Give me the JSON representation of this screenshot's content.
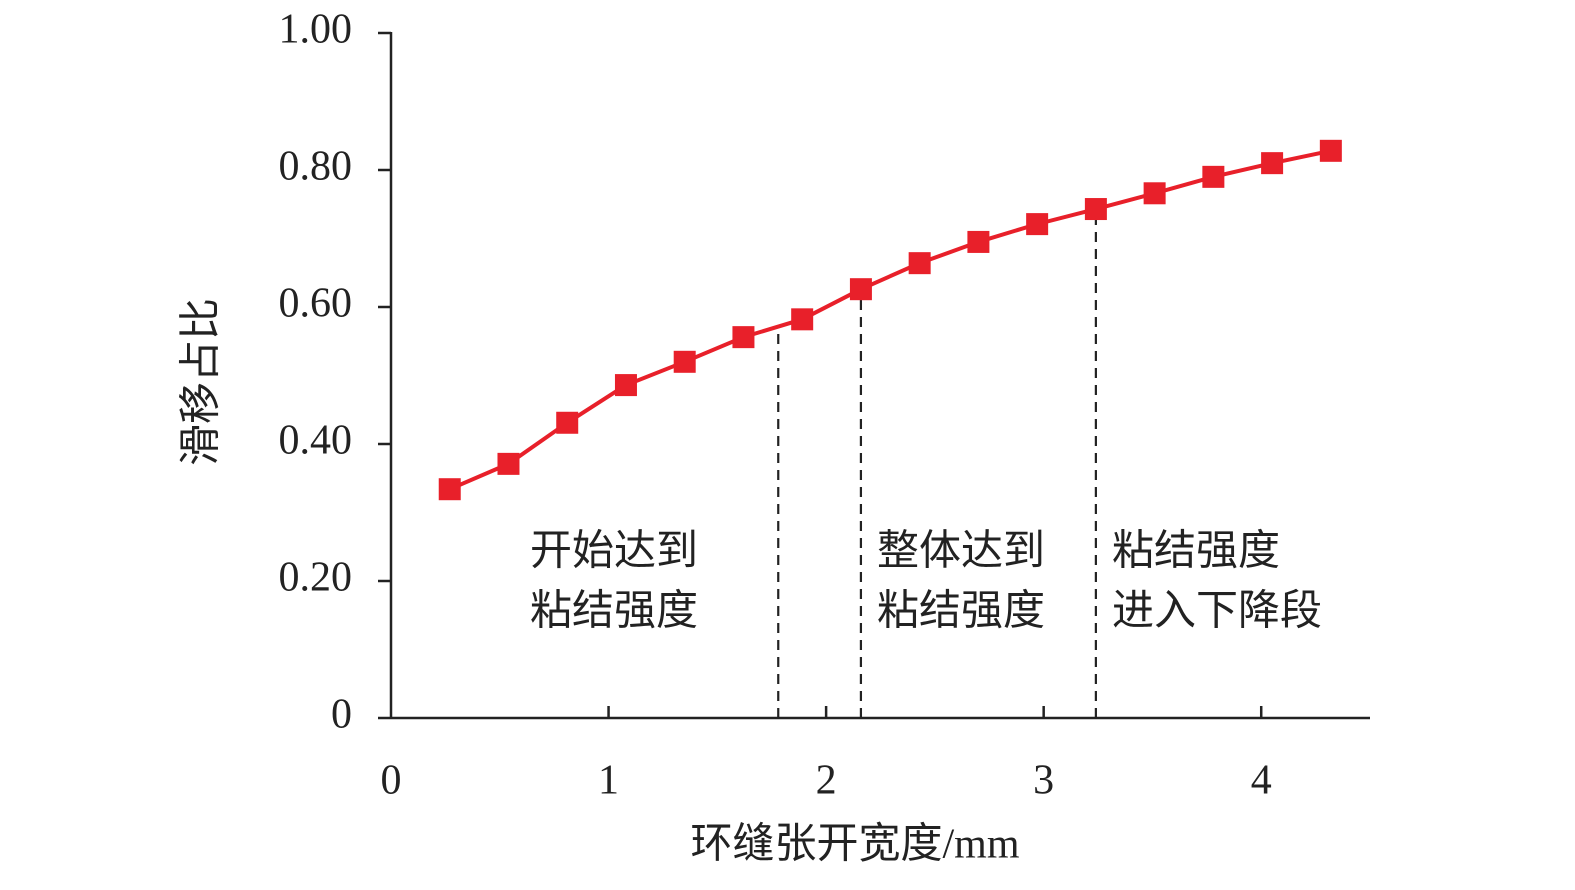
{
  "chart_data": {
    "type": "line",
    "x_label": "环缝张开宽度/mm",
    "y_label": "滑移占比",
    "x": [
      0.27,
      0.54,
      0.81,
      1.08,
      1.35,
      1.62,
      1.89,
      2.16,
      2.43,
      2.7,
      2.97,
      3.24,
      3.51,
      3.78,
      4.05,
      4.32
    ],
    "series": [
      {
        "color": "#e8202a",
        "marker": "square",
        "values": [
          0.334,
          0.371,
          0.431,
          0.486,
          0.52,
          0.556,
          0.582,
          0.626,
          0.664,
          0.695,
          0.721,
          0.743,
          0.766,
          0.79,
          0.81,
          0.828
        ]
      }
    ],
    "xlim": [
      0,
      4.5
    ],
    "xticks": [
      0,
      1,
      2,
      3,
      4
    ],
    "ylim": [
      0,
      1.0
    ],
    "yticks": [
      0,
      {
        "value": 0.2,
        "label": "0.20"
      },
      {
        "value": 0.4,
        "label": "0.40"
      },
      {
        "value": 0.6,
        "label": "0.60"
      },
      {
        "value": 0.8,
        "label": "0.80"
      },
      {
        "value": 1.0,
        "label": "1.00"
      }
    ],
    "grid": false,
    "reference_lines": [
      1.78,
      2.16,
      3.24
    ],
    "annotations": [
      [
        "开始达到",
        "粘结强度"
      ],
      [
        "整体达到",
        "粘结强度"
      ],
      [
        "粘结强度",
        "进入下降段"
      ]
    ]
  }
}
